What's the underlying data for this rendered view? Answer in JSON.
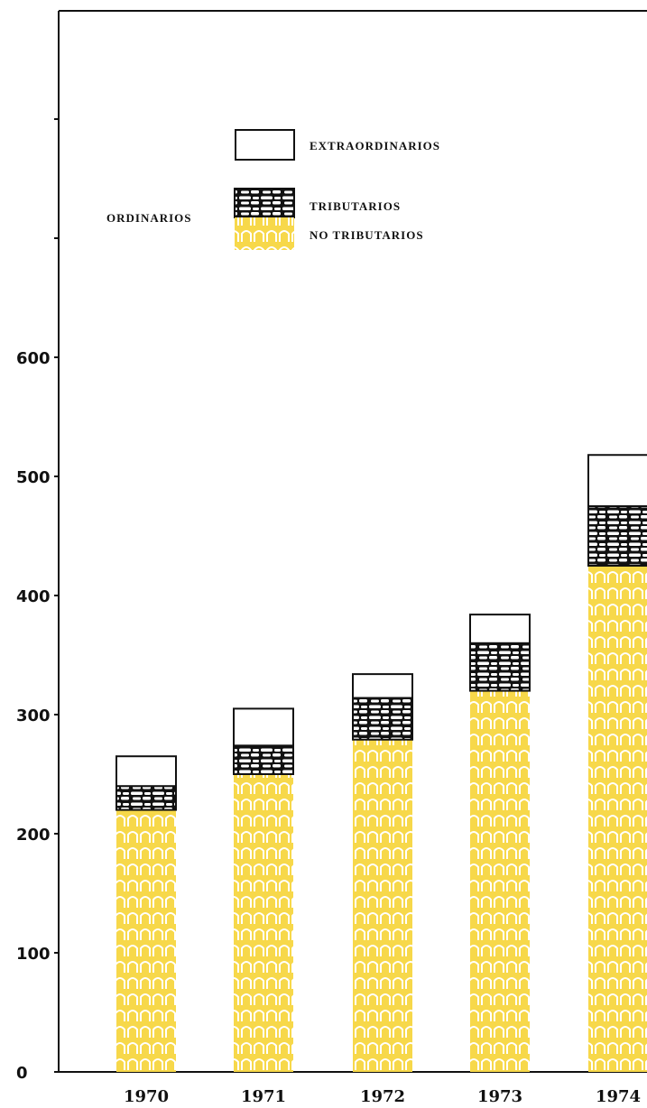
{
  "chart_data": {
    "type": "bar",
    "stacked": true,
    "categories": [
      "1970",
      "1971",
      "1972",
      "1973",
      "1974"
    ],
    "series": [
      {
        "name": "NO TRIBUTARIOS",
        "group": "ORDINARIOS",
        "color": "#f7d84a",
        "values": [
          220,
          250,
          279,
          320,
          425
        ]
      },
      {
        "name": "TRIBUTARIOS",
        "group": "ORDINARIOS",
        "color": "#111111",
        "values": [
          20,
          24,
          35,
          40,
          50
        ]
      },
      {
        "name": "EXTRAORDINARIOS",
        "color": "#ffffff",
        "values": [
          25,
          31,
          20,
          24,
          43
        ]
      }
    ],
    "y_ticks": [
      "0",
      "100",
      "200",
      "300",
      "400",
      "500",
      "600"
    ],
    "ylim": [
      0,
      900
    ],
    "legend": {
      "group_label": "ORDINARIOS",
      "placement": "top-center"
    },
    "grid": false
  }
}
